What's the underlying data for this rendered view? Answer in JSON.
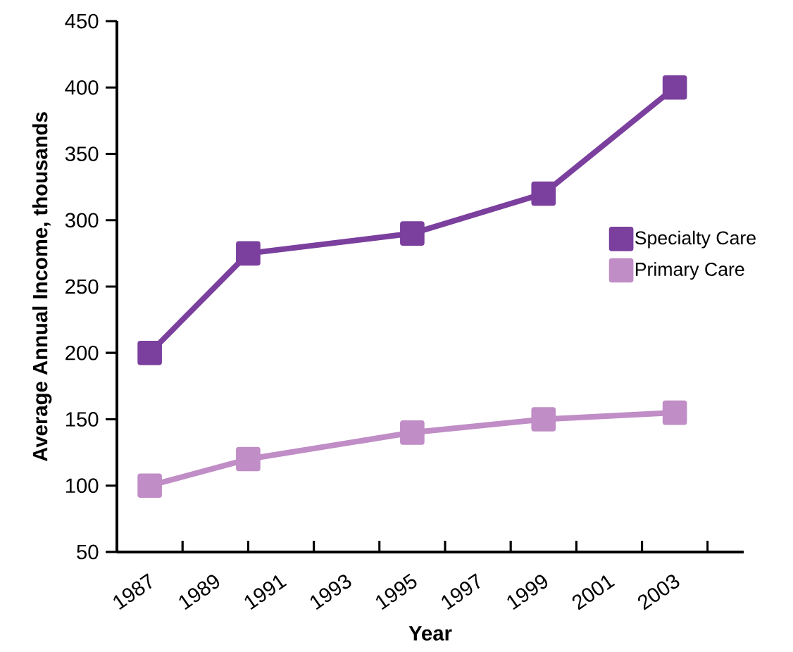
{
  "chart_data": {
    "type": "line",
    "xlabel": "Year",
    "ylabel": "Average Annual Income, thousands",
    "x": [
      1987,
      1990,
      1995,
      1999,
      2003
    ],
    "series": [
      {
        "name": "Specialty Care",
        "color": "#7b3f9e",
        "values": [
          200,
          275,
          290,
          320,
          400
        ]
      },
      {
        "name": "Primary Care",
        "color": "#c08dc6",
        "values": [
          100,
          120,
          140,
          150,
          155
        ]
      }
    ],
    "xlim": [
      1986,
      2005.1
    ],
    "ylim": [
      50,
      450
    ],
    "xticks": [
      1987,
      {
        "value": 1988,
        "label": null
      },
      1989,
      {
        "value": 1990,
        "label": null
      },
      1991,
      {
        "value": 1992,
        "label": null
      },
      1993,
      {
        "value": 1994,
        "label": null
      },
      1995,
      {
        "value": 1996,
        "label": null
      },
      1997,
      {
        "value": 1998,
        "label": null
      },
      1999,
      {
        "value": 2000,
        "label": null
      },
      2001,
      {
        "value": 2002,
        "label": null
      },
      2003,
      {
        "value": 2004,
        "label": null
      }
    ],
    "yticks": [
      50,
      100,
      150,
      200,
      250,
      300,
      350,
      400,
      450
    ],
    "marker": "square",
    "line_style": "solid",
    "legend": "right",
    "grid": false
  }
}
